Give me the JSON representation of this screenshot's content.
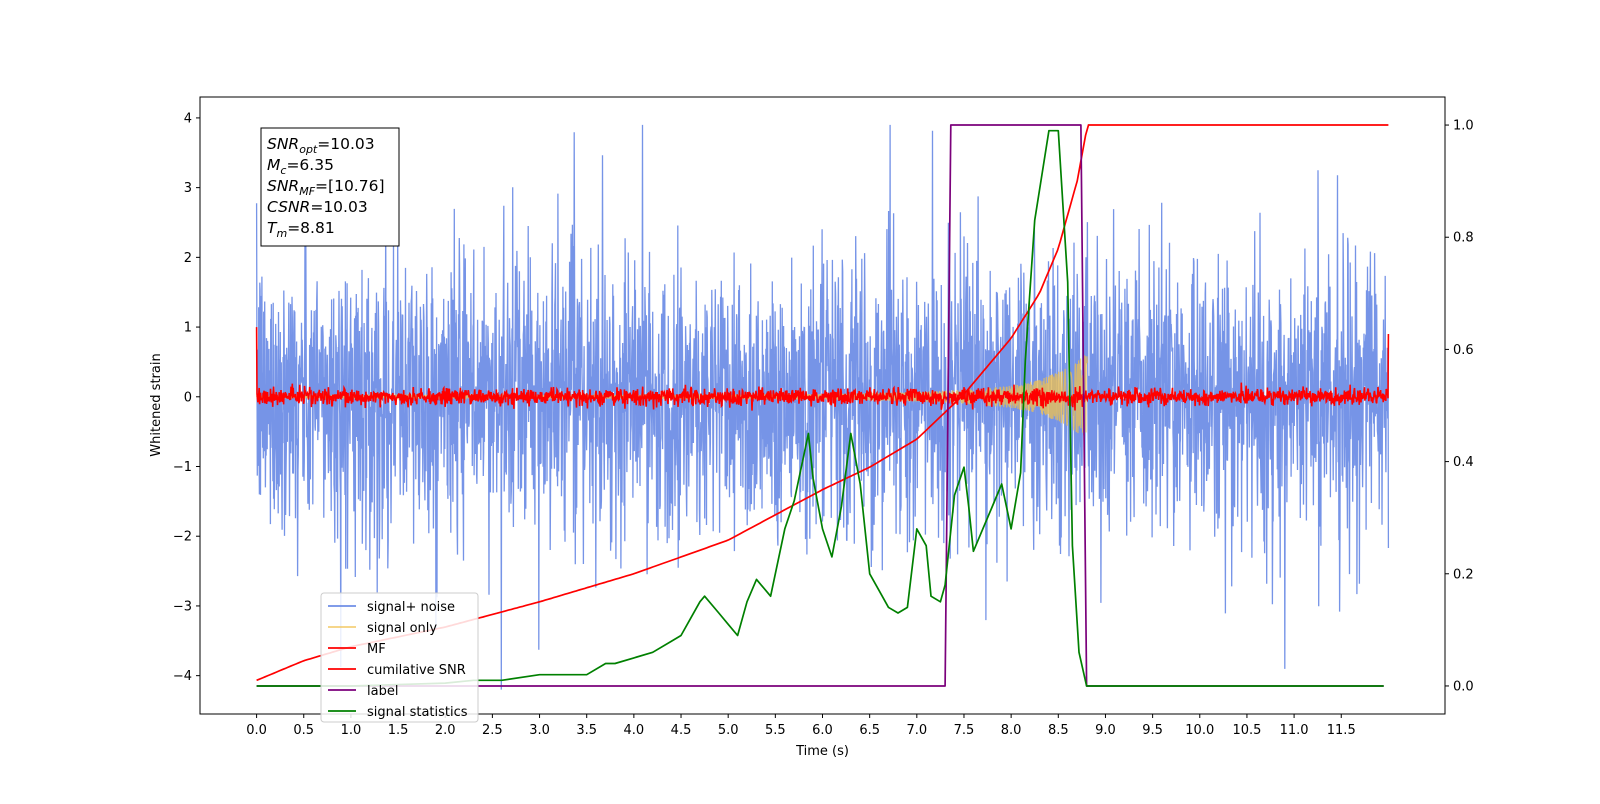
{
  "chart_data": {
    "type": "line",
    "title": "",
    "xlabel": "Time (s)",
    "ylabel": "Whitened strain",
    "xlim": [
      -0.6,
      12.6
    ],
    "ylim": [
      -4.55,
      4.3
    ],
    "ylim_right": [
      -0.05,
      1.05
    ],
    "x_ticks": [
      "0.0",
      "0.5",
      "1.0",
      "1.5",
      "2.0",
      "2.5",
      "3.0",
      "3.5",
      "4.0",
      "4.5",
      "5.0",
      "5.5",
      "6.0",
      "6.5",
      "7.0",
      "7.5",
      "8.0",
      "8.5",
      "9.0",
      "9.5",
      "10.0",
      "10.5",
      "11.0",
      "11.5"
    ],
    "y_ticks_left": [
      "4",
      "3",
      "2",
      "1",
      "0",
      "−1",
      "−2",
      "−3",
      "−4"
    ],
    "y_ticks_right": [
      "1.0",
      "0.8",
      "0.6",
      "0.4",
      "0.2",
      "0.0"
    ],
    "grid": false,
    "legend_position": "lower-left",
    "annotation": [
      {
        "main": "SNR",
        "sub": "opt",
        "value": "=10.03"
      },
      {
        "main": "M",
        "sub": "c",
        "value": "=6.35"
      },
      {
        "main": "SNR",
        "sub": "MF",
        "value": "=[10.76]"
      },
      {
        "main": "CSNR",
        "sub": "",
        "value": "=10.03"
      },
      {
        "main": "T",
        "sub": "m",
        "value": "=8.81"
      }
    ],
    "series": [
      {
        "name": "signal+ noise",
        "axis": "left",
        "color": "#6f8ee6",
        "description_values": {
          "duration": 12.0,
          "center": 0.0,
          "approx_extremes": [
            -4.2,
            3.9
          ]
        }
      },
      {
        "name": "signal only",
        "axis": "left",
        "color": "#f2c14e",
        "envelope_x": [
          0.0,
          6.0,
          7.0,
          7.5,
          8.0,
          8.3,
          8.6,
          8.81
        ],
        "envelope_y": [
          0.01,
          0.04,
          0.07,
          0.1,
          0.16,
          0.24,
          0.42,
          0.62
        ]
      },
      {
        "name": "MF",
        "axis": "left",
        "color": "#ff0000",
        "x_range": [
          0.0,
          12.0
        ],
        "amplitude": 0.12
      },
      {
        "name": "cumilative SNR",
        "axis": "right",
        "color": "#ff0000",
        "x": [
          0.0,
          0.5,
          1.0,
          2.0,
          3.0,
          4.0,
          5.0,
          6.0,
          6.5,
          7.0,
          7.5,
          8.0,
          8.3,
          8.5,
          8.7,
          8.81,
          12.0
        ],
        "y": [
          0.01,
          0.045,
          0.07,
          0.105,
          0.15,
          0.2,
          0.26,
          0.35,
          0.39,
          0.44,
          0.52,
          0.62,
          0.7,
          0.78,
          0.9,
          1.0,
          1.0
        ]
      },
      {
        "name": "label",
        "axis": "right",
        "color": "#7b007b",
        "x": [
          0.0,
          7.3,
          7.36,
          8.74,
          8.8,
          11.95
        ],
        "y": [
          0.0,
          0.0,
          1.0,
          1.0,
          0.0,
          0.0
        ]
      },
      {
        "name": "signal statistics",
        "axis": "right",
        "color": "#008000",
        "x": [
          0.0,
          1.0,
          2.0,
          2.3,
          2.6,
          3.0,
          3.2,
          3.5,
          3.7,
          3.8,
          4.0,
          4.2,
          4.4,
          4.5,
          4.6,
          4.7,
          4.75,
          4.9,
          5.0,
          5.1,
          5.2,
          5.3,
          5.45,
          5.6,
          5.7,
          5.85,
          5.9,
          6.0,
          6.1,
          6.2,
          6.3,
          6.4,
          6.5,
          6.6,
          6.7,
          6.8,
          6.9,
          7.0,
          7.1,
          7.15,
          7.25,
          7.3,
          7.4,
          7.5,
          7.55,
          7.6,
          7.7,
          7.8,
          7.9,
          8.0,
          8.1,
          8.15,
          8.25,
          8.4,
          8.5,
          8.6,
          8.65,
          8.72,
          8.8,
          8.9,
          9.0,
          10.0,
          11.0,
          11.95
        ],
        "y": [
          0.0,
          0.0,
          0.005,
          0.01,
          0.01,
          0.02,
          0.02,
          0.02,
          0.04,
          0.04,
          0.05,
          0.06,
          0.08,
          0.09,
          0.12,
          0.15,
          0.16,
          0.13,
          0.11,
          0.09,
          0.15,
          0.19,
          0.16,
          0.28,
          0.33,
          0.45,
          0.37,
          0.28,
          0.23,
          0.32,
          0.45,
          0.36,
          0.2,
          0.17,
          0.14,
          0.13,
          0.14,
          0.28,
          0.25,
          0.16,
          0.15,
          0.18,
          0.34,
          0.39,
          0.32,
          0.24,
          0.28,
          0.32,
          0.36,
          0.28,
          0.38,
          0.58,
          0.83,
          0.99,
          0.99,
          0.72,
          0.25,
          0.06,
          0.0,
          0.0,
          0.0,
          0.0,
          0.0,
          0.0
        ]
      }
    ]
  }
}
